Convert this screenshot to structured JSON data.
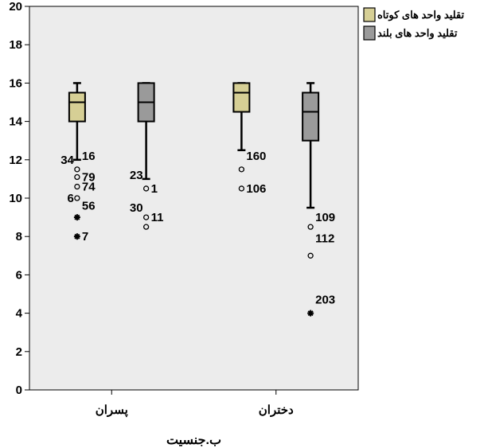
{
  "chart_data": {
    "type": "boxplot",
    "title": "",
    "xlabel": "ب.جنسیت",
    "ylabel": "",
    "ylim": [
      0,
      20
    ],
    "yticks": [
      0,
      2,
      4,
      6,
      8,
      10,
      12,
      14,
      16,
      18,
      20
    ],
    "grid": false,
    "legend_position": "top-right",
    "categories": [
      "پسران",
      "دختران"
    ],
    "series": [
      {
        "name": "تقلید واحد های کوتاه",
        "color": "#d6cf95",
        "boxes": [
          {
            "category": "پسران",
            "whisker_low": 12,
            "q1": 14,
            "median": 15,
            "q3": 15.5,
            "whisker_high": 16,
            "outliers": [
              {
                "value": 12,
                "label": "34",
                "marker": "none"
              },
              {
                "value": 12.2,
                "label": "16",
                "marker": "none"
              },
              {
                "value": 11.5,
                "label": "",
                "marker": "circle"
              },
              {
                "value": 11.1,
                "label": "79",
                "marker": "circle"
              },
              {
                "value": 10.6,
                "label": "74",
                "marker": "circle"
              },
              {
                "value": 10,
                "label": "6",
                "marker": "circle"
              },
              {
                "value": 9.6,
                "label": "56",
                "marker": "none"
              },
              {
                "value": 9,
                "label": "",
                "marker": "star"
              },
              {
                "value": 8,
                "label": "7",
                "marker": "star"
              }
            ]
          },
          {
            "category": "دختران",
            "whisker_low": 12.5,
            "q1": 14.5,
            "median": 15.5,
            "q3": 16,
            "whisker_high": 16,
            "outliers": [
              {
                "value": 12.2,
                "label": "160",
                "marker": "none"
              },
              {
                "value": 11.5,
                "label": "",
                "marker": "circle"
              },
              {
                "value": 10.5,
                "label": "106",
                "marker": "circle"
              }
            ]
          }
        ]
      },
      {
        "name": "تقلید واحد های بلند",
        "color": "#9a9a9a",
        "boxes": [
          {
            "category": "پسران",
            "whisker_low": 11,
            "q1": 14,
            "median": 15,
            "q3": 16,
            "whisker_high": 16,
            "outliers": [
              {
                "value": 11.2,
                "label": "23",
                "marker": "none"
              },
              {
                "value": 10.5,
                "label": "1",
                "marker": "circle"
              },
              {
                "value": 9.5,
                "label": "30",
                "marker": "none"
              },
              {
                "value": 9,
                "label": "11",
                "marker": "circle"
              },
              {
                "value": 8.5,
                "label": "",
                "marker": "circle"
              }
            ]
          },
          {
            "category": "دختران",
            "whisker_low": 9.5,
            "q1": 13,
            "median": 14.5,
            "q3": 15.5,
            "whisker_high": 16,
            "outliers": [
              {
                "value": 9,
                "label": "109",
                "marker": "none"
              },
              {
                "value": 8.5,
                "label": "",
                "marker": "circle"
              },
              {
                "value": 7.9,
                "label": "112",
                "marker": "none"
              },
              {
                "value": 7,
                "label": "",
                "marker": "circle"
              },
              {
                "value": 4.7,
                "label": "203",
                "marker": "none"
              },
              {
                "value": 4,
                "label": "",
                "marker": "star"
              }
            ]
          }
        ]
      }
    ]
  }
}
